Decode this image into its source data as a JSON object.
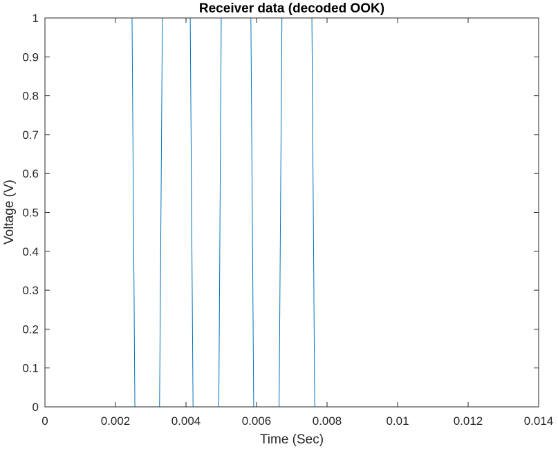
{
  "chart_data": {
    "type": "line",
    "title": "Receiver data (decoded OOK)",
    "xlabel": "Time (Sec)",
    "ylabel": "Voltage (V)",
    "xlim": [
      0,
      0.014
    ],
    "ylim": [
      0,
      1
    ],
    "xticks": [
      0,
      0.002,
      0.004,
      0.006,
      0.008,
      0.01,
      0.012,
      0.014
    ],
    "xtick_labels": [
      "0",
      "0.002",
      "0.004",
      "0.006",
      "0.008",
      "0.01",
      "0.012",
      "0.014"
    ],
    "yticks": [
      0,
      0.1,
      0.2,
      0.3,
      0.4,
      0.5,
      0.6,
      0.7,
      0.8,
      0.9,
      1
    ],
    "ytick_labels": [
      "0",
      "0.1",
      "0.2",
      "0.3",
      "0.4",
      "0.5",
      "0.6",
      "0.7",
      "0.8",
      "0.9",
      "1"
    ],
    "grid": false,
    "line_color": "#0072BD",
    "series": [
      {
        "x": [
          0,
          0.00247,
          0.00255,
          0.00325,
          0.00333,
          0.00412,
          0.0042,
          0.00493,
          0.005,
          0.00584,
          0.00592,
          0.00664,
          0.00672,
          0.00757,
          0.00765,
          0.01277
        ],
        "y": [
          1,
          1,
          0,
          0,
          1,
          1,
          0,
          0,
          1,
          1,
          0,
          0,
          1,
          1,
          0,
          0
        ]
      }
    ]
  }
}
